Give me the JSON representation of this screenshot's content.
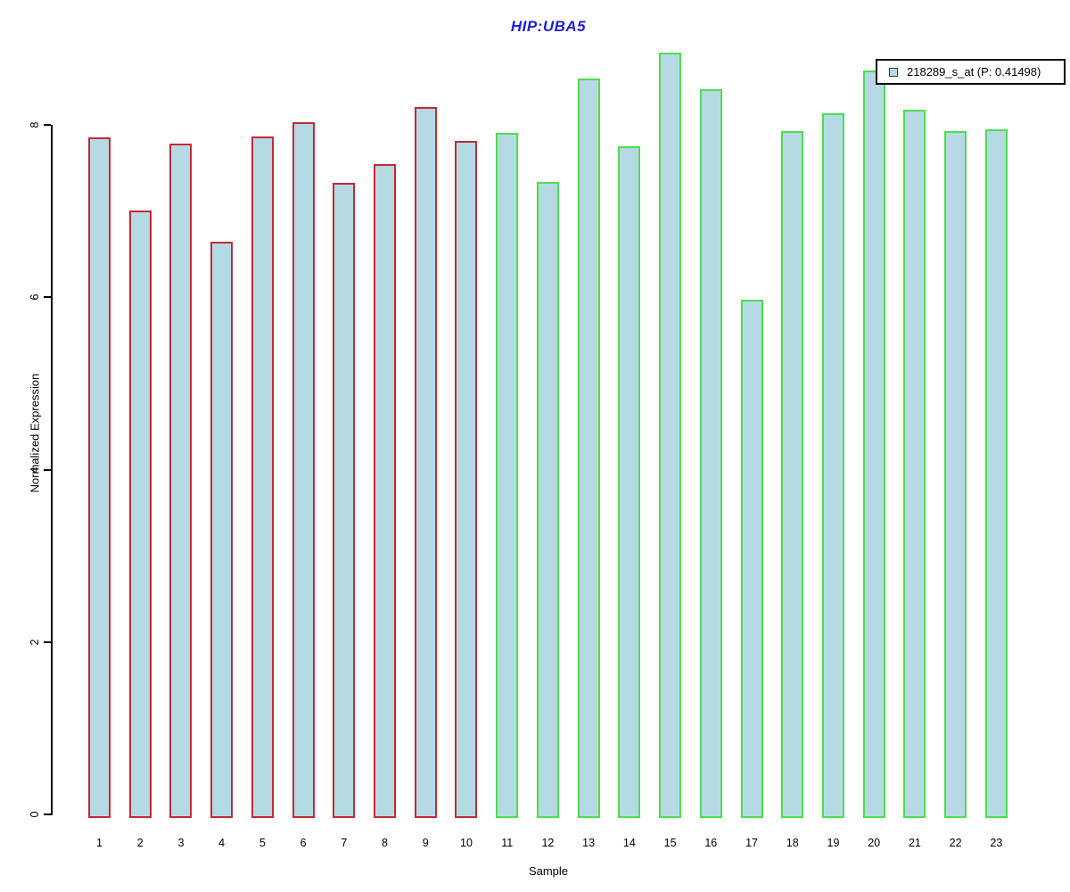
{
  "title": {
    "text": "HIP:UBA5",
    "color": "#2020cf"
  },
  "legend": {
    "label": "218289_s_at (P: 0.41498)",
    "swatch_fill": "#b5dae3",
    "swatch_border": "#3c3c46",
    "box_border": "#000000"
  },
  "colors": {
    "bar_fill": "#b5dae3",
    "outline_group_a": "#c22b35",
    "outline_group_b": "#4ede4e",
    "axis": "#000000"
  },
  "chart_data": {
    "type": "bar",
    "title": "HIP:UBA5",
    "xlabel": "Sample",
    "ylabel": "Normalized Expression",
    "ylim": [
      0,
      9
    ],
    "y_ticks": [
      0,
      2,
      4,
      6,
      8
    ],
    "grid": false,
    "legend_position": "top-right",
    "categories": [
      1,
      2,
      3,
      4,
      5,
      6,
      7,
      8,
      9,
      10,
      11,
      12,
      13,
      14,
      15,
      16,
      17,
      18,
      19,
      20,
      21,
      22,
      23
    ],
    "series": [
      {
        "name": "218289_s_at (P: 0.41498)",
        "values": [
          7.85,
          7.01,
          7.78,
          6.64,
          7.87,
          8.03,
          7.33,
          7.54,
          8.21,
          7.81,
          7.91,
          7.34,
          8.54,
          7.75,
          8.84,
          8.41,
          5.97,
          7.93,
          8.13,
          8.63,
          8.18,
          7.93,
          7.95
        ]
      }
    ],
    "groups": [
      {
        "name": "outline-red",
        "color": "#c22b35",
        "category_range": [
          1,
          10
        ]
      },
      {
        "name": "outline-green",
        "color": "#4ede4e",
        "category_range": [
          11,
          23
        ]
      }
    ]
  }
}
